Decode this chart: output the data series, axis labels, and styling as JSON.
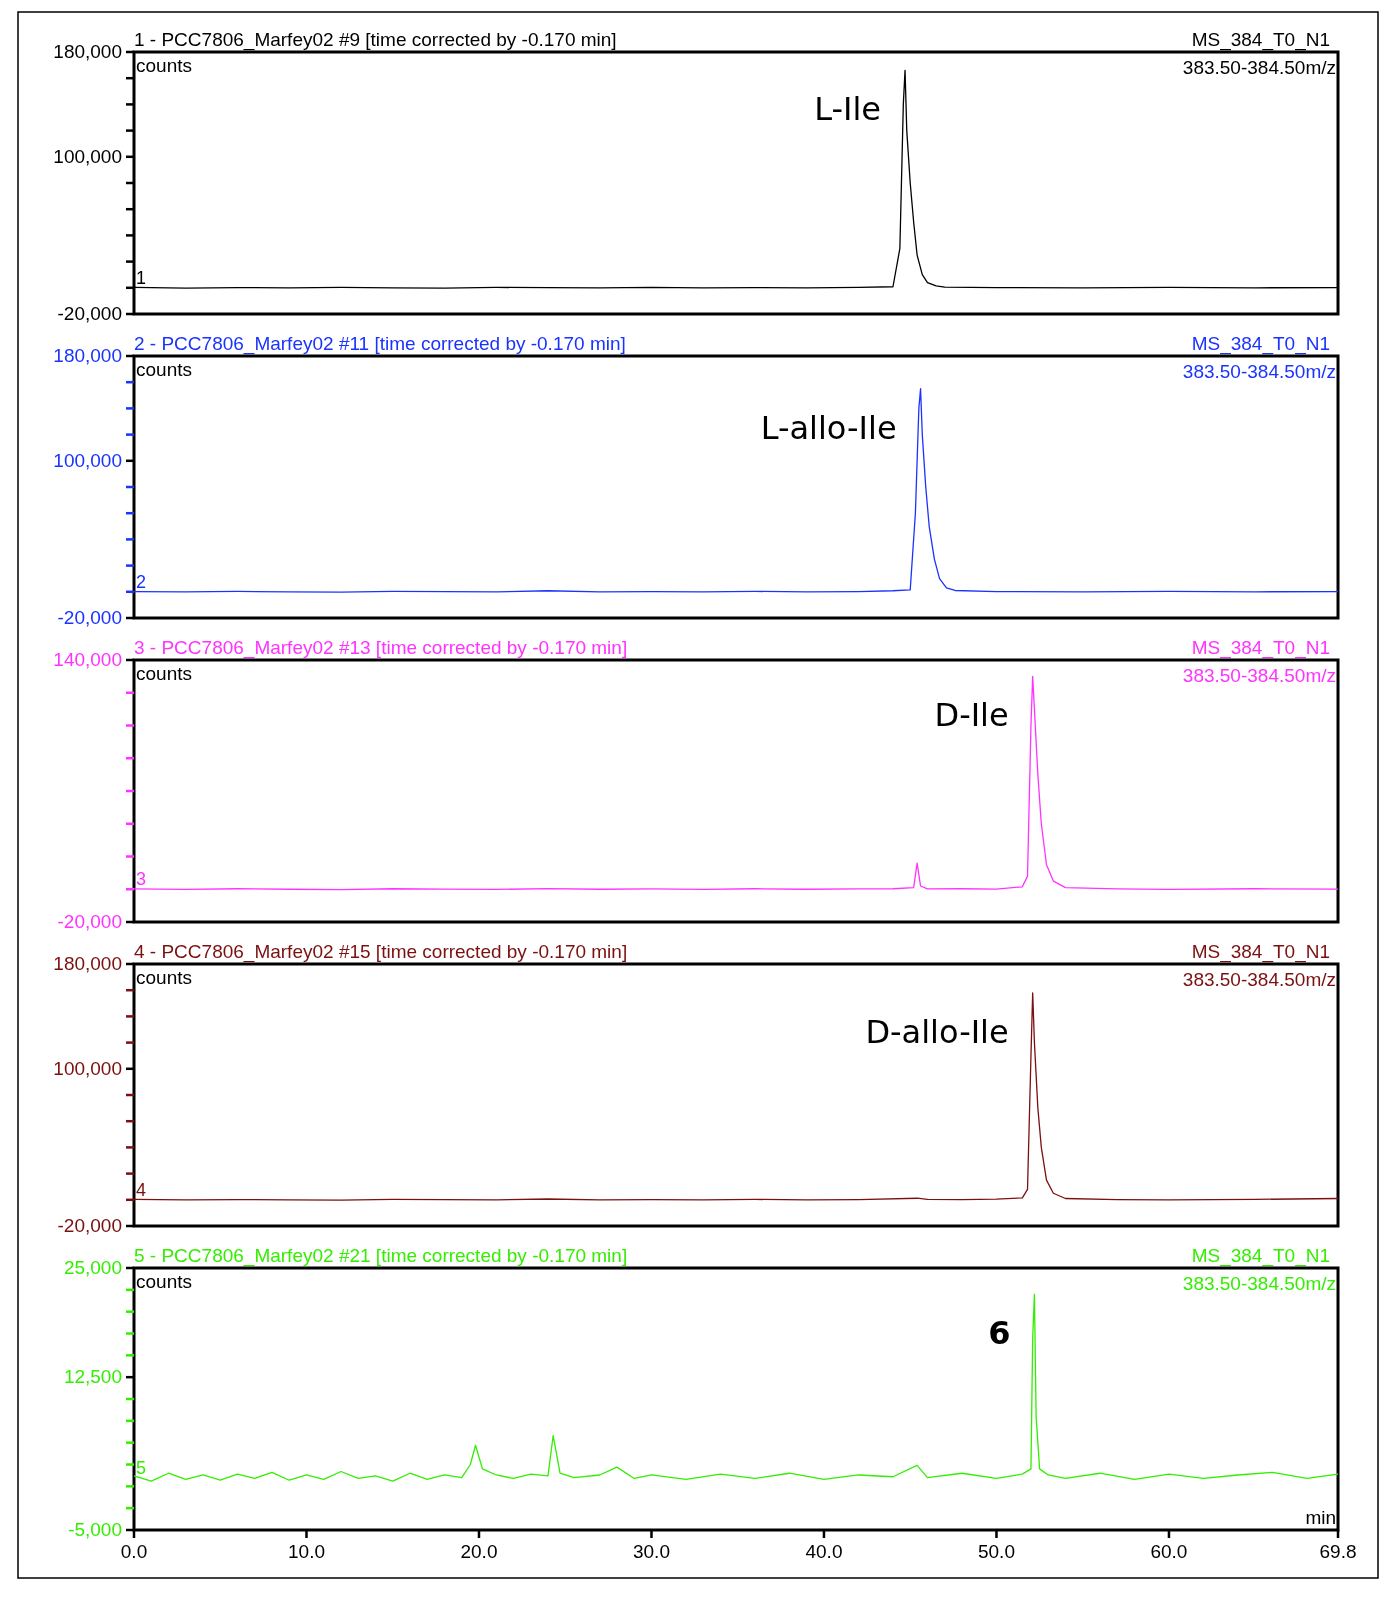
{
  "chart_data": [
    {
      "type": "line",
      "title": "1 - PCC7806_Marfey02 #9 [time corrected by -0.170 min]",
      "subtitle": "MS_384_T0_N1",
      "ylabel": "counts",
      "annotations": [
        "383.50-384.50m/z",
        {
          "text": "1",
          "x": 0,
          "y": 0
        },
        {
          "text": "L-Ile",
          "x": 44.7,
          "y": 166000
        }
      ],
      "xlim": [
        0,
        69.8
      ],
      "ylim": [
        -20000,
        180000
      ],
      "yticks": [
        {
          "value": -20000,
          "label": "-20,000"
        },
        {
          "value": 0,
          "label": null
        },
        {
          "value": 20000,
          "label": null
        },
        {
          "value": 40000,
          "label": null
        },
        {
          "value": 60000,
          "label": null
        },
        {
          "value": 80000,
          "label": null
        },
        {
          "value": 100000,
          "label": "100,000"
        },
        {
          "value": 120000,
          "label": null
        },
        {
          "value": 140000,
          "label": null
        },
        {
          "value": 160000,
          "label": null
        },
        {
          "value": 180000,
          "label": "180,000"
        }
      ],
      "tick_labels": "y",
      "series": [
        {
          "color": "#000000",
          "x": [
            0,
            3,
            6,
            9,
            12,
            15,
            18,
            21,
            24,
            27,
            30,
            33,
            36,
            39,
            42,
            44,
            44.4,
            44.6,
            44.7,
            44.8,
            45.0,
            45.2,
            45.4,
            45.7,
            46.0,
            46.5,
            47,
            50,
            55,
            60,
            65,
            69.8
          ],
          "values": [
            300,
            -200,
            200,
            -100,
            300,
            0,
            -200,
            300,
            100,
            -100,
            400,
            0,
            200,
            -100,
            300,
            800,
            30000,
            140000,
            166000,
            120000,
            80000,
            50000,
            25000,
            10000,
            4000,
            1500,
            500,
            200,
            -100,
            300,
            0,
            200
          ]
        }
      ]
    },
    {
      "type": "line",
      "title": "2 - PCC7806_Marfey02 #11 [time corrected by -0.170 min]",
      "subtitle": "MS_384_T0_N1",
      "ylabel": "counts",
      "annotations": [
        "383.50-384.50m/z",
        {
          "text": "2",
          "x": 0,
          "y": 0
        },
        {
          "text": "L-allo-Ile",
          "x": 45.6,
          "y": 155000
        }
      ],
      "xlim": [
        0,
        69.8
      ],
      "ylim": [
        -20000,
        180000
      ],
      "yticks": [
        {
          "value": -20000,
          "label": "-20,000"
        },
        {
          "value": 0,
          "label": null
        },
        {
          "value": 20000,
          "label": null
        },
        {
          "value": 40000,
          "label": null
        },
        {
          "value": 60000,
          "label": null
        },
        {
          "value": 80000,
          "label": null
        },
        {
          "value": 100000,
          "label": "100,000"
        },
        {
          "value": 120000,
          "label": null
        },
        {
          "value": 140000,
          "label": null
        },
        {
          "value": 160000,
          "label": null
        },
        {
          "value": 180000,
          "label": "180,000"
        }
      ],
      "tick_labels": "y",
      "series": [
        {
          "color": "#1a33ff",
          "x": [
            0,
            3,
            6,
            9,
            12,
            15,
            18,
            21,
            24,
            27,
            30,
            33,
            36,
            39,
            42,
            44,
            45.0,
            45.3,
            45.5,
            45.6,
            45.7,
            45.9,
            46.1,
            46.4,
            46.7,
            47.1,
            47.6,
            50,
            55,
            60,
            65,
            69.8
          ],
          "values": [
            200,
            -100,
            300,
            0,
            -200,
            300,
            100,
            -100,
            800,
            0,
            200,
            -100,
            300,
            0,
            200,
            800,
            1500,
            60000,
            140000,
            155000,
            120000,
            80000,
            50000,
            25000,
            10000,
            3000,
            1000,
            200,
            -100,
            300,
            0,
            200
          ]
        }
      ]
    },
    {
      "type": "line",
      "title": "3 - PCC7806_Marfey02 #13 [time corrected by -0.170 min]",
      "subtitle": "MS_384_T0_N1",
      "ylabel": "counts",
      "annotations": [
        "383.50-384.50m/z",
        {
          "text": "3",
          "x": 0,
          "y": 0
        },
        {
          "text": "D-Ile",
          "x": 52.1,
          "y": 130000
        }
      ],
      "xlim": [
        0,
        69.8
      ],
      "ylim": [
        -20000,
        140000
      ],
      "yticks": [
        {
          "value": -20000,
          "label": "-20,000"
        },
        {
          "value": 0,
          "label": null
        },
        {
          "value": 20000,
          "label": null
        },
        {
          "value": 40000,
          "label": null
        },
        {
          "value": 60000,
          "label": null
        },
        {
          "value": 80000,
          "label": null
        },
        {
          "value": 100000,
          "label": null
        },
        {
          "value": 120000,
          "label": null
        },
        {
          "value": 140000,
          "label": "140,000"
        }
      ],
      "tick_labels": "y",
      "series": [
        {
          "color": "#ff33ff",
          "x": [
            0,
            3,
            6,
            9,
            12,
            15,
            18,
            21,
            24,
            27,
            30,
            33,
            36,
            39,
            42,
            44,
            45.2,
            45.4,
            45.6,
            46,
            48,
            50,
            51.5,
            51.8,
            52.0,
            52.1,
            52.2,
            52.4,
            52.6,
            52.9,
            53.3,
            54,
            57,
            60,
            65,
            69.8
          ],
          "values": [
            200,
            -100,
            300,
            0,
            -200,
            300,
            100,
            -100,
            400,
            0,
            200,
            -100,
            300,
            0,
            200,
            300,
            1000,
            16000,
            2000,
            200,
            300,
            100,
            1500,
            8000,
            100000,
            130000,
            110000,
            70000,
            40000,
            15000,
            5000,
            1000,
            200,
            -100,
            300,
            100
          ]
        }
      ]
    },
    {
      "type": "line",
      "title": "4 - PCC7806_Marfey02 #15 [time corrected by -0.170 min]",
      "subtitle": "MS_384_T0_N1",
      "ylabel": "counts",
      "annotations": [
        "383.50-384.50m/z",
        {
          "text": "4",
          "x": 0,
          "y": 0
        },
        {
          "text": "D-allo-Ile",
          "x": 52.1,
          "y": 158000
        }
      ],
      "xlim": [
        0,
        69.8
      ],
      "ylim": [
        -20000,
        180000
      ],
      "yticks": [
        {
          "value": -20000,
          "label": "-20,000"
        },
        {
          "value": 0,
          "label": null
        },
        {
          "value": 20000,
          "label": null
        },
        {
          "value": 40000,
          "label": null
        },
        {
          "value": 60000,
          "label": null
        },
        {
          "value": 80000,
          "label": null
        },
        {
          "value": 100000,
          "label": "100,000"
        },
        {
          "value": 120000,
          "label": null
        },
        {
          "value": 140000,
          "label": null
        },
        {
          "value": 160000,
          "label": null
        },
        {
          "value": 180000,
          "label": "180,000"
        }
      ],
      "tick_labels": "y",
      "series": [
        {
          "color": "#7a1010",
          "x": [
            0,
            3,
            6,
            9,
            12,
            15,
            18,
            21,
            24,
            27,
            30,
            33,
            36,
            39,
            42,
            45.4,
            46,
            48,
            50,
            51.5,
            51.8,
            52.0,
            52.1,
            52.2,
            52.4,
            52.6,
            52.9,
            53.3,
            54,
            57,
            60,
            65,
            69.8
          ],
          "values": [
            300,
            -100,
            200,
            0,
            -200,
            300,
            100,
            -100,
            600,
            0,
            200,
            -100,
            300,
            0,
            200,
            1200,
            300,
            200,
            500,
            1500,
            8000,
            110000,
            158000,
            120000,
            70000,
            40000,
            15000,
            5000,
            1000,
            200,
            -100,
            300,
            1000
          ]
        }
      ]
    },
    {
      "type": "line",
      "title": "5 - PCC7806_Marfey02 #21 [time corrected by -0.170 min]",
      "subtitle": "MS_384_T0_N1",
      "ylabel": "counts",
      "xlabel": "min",
      "annotations": [
        "383.50-384.50m/z",
        {
          "text": "5",
          "x": 0,
          "y": 1000
        },
        {
          "text": "6",
          "x": 52.2,
          "y": 22000
        }
      ],
      "xlim": [
        0,
        69.8
      ],
      "ylim": [
        -5000,
        25000
      ],
      "xticks": [
        {
          "value": 0,
          "label": "0.0"
        },
        {
          "value": 10,
          "label": "10.0"
        },
        {
          "value": 20,
          "label": "20.0"
        },
        {
          "value": 30,
          "label": "30.0"
        },
        {
          "value": 40,
          "label": "40.0"
        },
        {
          "value": 50,
          "label": "50.0"
        },
        {
          "value": 60,
          "label": "60.0"
        },
        {
          "value": 69.8,
          "label": "69.8"
        }
      ],
      "yticks": [
        {
          "value": -5000,
          "label": "-5,000"
        },
        {
          "value": -2500,
          "label": null
        },
        {
          "value": 0,
          "label": null
        },
        {
          "value": 2500,
          "label": null
        },
        {
          "value": 5000,
          "label": null
        },
        {
          "value": 7500,
          "label": null
        },
        {
          "value": 10000,
          "label": null
        },
        {
          "value": 12500,
          "label": "12,500"
        },
        {
          "value": 15000,
          "label": null
        },
        {
          "value": 17500,
          "label": null
        },
        {
          "value": 20000,
          "label": null
        },
        {
          "value": 22500,
          "label": null
        },
        {
          "value": 25000,
          "label": "25,000"
        }
      ],
      "series": [
        {
          "color": "#33ee00",
          "x": [
            0,
            1,
            2,
            3,
            4,
            5,
            6,
            7,
            8,
            9,
            10,
            11,
            12,
            13,
            14,
            15,
            16,
            17,
            18,
            19,
            19.5,
            19.8,
            20.2,
            21,
            22,
            23,
            24,
            24.3,
            24.7,
            25.5,
            27,
            28,
            29,
            30,
            32,
            34,
            36,
            38,
            40,
            42,
            44,
            45.4,
            46,
            48,
            50,
            51.5,
            52.0,
            52.1,
            52.2,
            52.3,
            52.5,
            53,
            54,
            56,
            58,
            60,
            62,
            64,
            66,
            68,
            69.8
          ],
          "values": [
            1200,
            600,
            1500,
            800,
            1300,
            700,
            1400,
            900,
            1600,
            700,
            1300,
            800,
            1700,
            900,
            1200,
            600,
            1500,
            800,
            1300,
            1000,
            2500,
            4700,
            2000,
            1300,
            900,
            1400,
            1200,
            5800,
            1500,
            1000,
            1300,
            2200,
            900,
            1300,
            800,
            1400,
            900,
            1500,
            800,
            1300,
            1100,
            2400,
            1000,
            1500,
            900,
            1400,
            2000,
            17000,
            22000,
            8000,
            2000,
            1300,
            900,
            1500,
            800,
            1400,
            900,
            1300,
            1600,
            900,
            1400
          ]
        }
      ]
    }
  ]
}
